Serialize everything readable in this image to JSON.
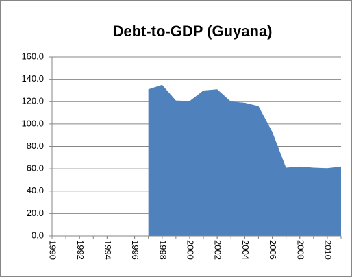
{
  "chart_data": {
    "type": "area",
    "title": "Debt-to-GDP (Guyana)",
    "x": [
      1990,
      1991,
      1992,
      1993,
      1994,
      1995,
      1996,
      1997,
      1998,
      1999,
      2000,
      2001,
      2002,
      2003,
      2004,
      2005,
      2006,
      2007,
      2008,
      2009,
      2010,
      2011
    ],
    "values": [
      null,
      null,
      null,
      null,
      null,
      null,
      null,
      131,
      135,
      121,
      120.5,
      130,
      131,
      120,
      119,
      116,
      93,
      61,
      62,
      61,
      60.5,
      62
    ],
    "color": "#4f81bd",
    "xlim": [
      1990,
      2011
    ],
    "xticks": [
      1990,
      1992,
      1994,
      1996,
      1998,
      2000,
      2002,
      2004,
      2006,
      2008,
      2010
    ],
    "ylim": [
      0,
      160
    ],
    "yticks": [
      {
        "value": 0,
        "label": "0.0"
      },
      {
        "value": 20,
        "label": "20.0"
      },
      {
        "value": 40,
        "label": "40.0"
      },
      {
        "value": 60,
        "label": "60.0"
      },
      {
        "value": 80,
        "label": "80.0"
      },
      {
        "value": 100,
        "label": "100.0"
      },
      {
        "value": 120,
        "label": "120.0"
      },
      {
        "value": 140,
        "label": "140.0"
      },
      {
        "value": 160,
        "label": "160.0"
      }
    ],
    "grid": true
  }
}
